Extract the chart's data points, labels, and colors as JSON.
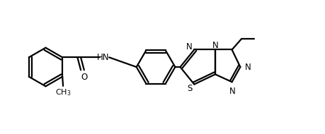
{
  "background_color": "#ffffff",
  "line_color": "#000000",
  "line_width": 1.6,
  "font_size": 8.5,
  "figsize": [
    4.59,
    1.9
  ],
  "dpi": 100,
  "xlim": [
    0,
    9.5
  ],
  "ylim": [
    0,
    4.0
  ]
}
